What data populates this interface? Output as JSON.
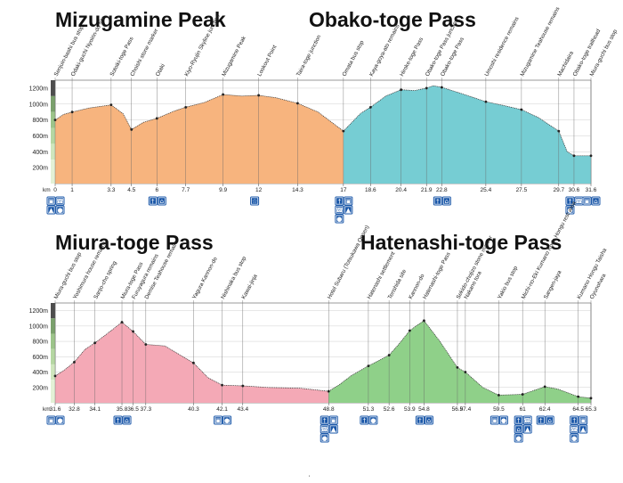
{
  "chart_data": [
    {
      "type": "area",
      "title_left": "Mizugamine Peak",
      "title_right": "Obako-toge Pass",
      "y_unit_label": "km",
      "yticks": [
        "200m",
        "400m",
        "600m",
        "800m",
        "1000m",
        "1200m"
      ],
      "ylim": [
        0,
        1300
      ],
      "xlim": [
        0,
        31.6
      ],
      "series": [
        {
          "color": "#f7b47e",
          "x": [
            0,
            0.5,
            1,
            2,
            3.3,
            4.0,
            4.5,
            5.2,
            6,
            7,
            7.7,
            8.8,
            9.9,
            11,
            12,
            13,
            14.3,
            15.5,
            17
          ],
          "y": [
            800,
            870,
            900,
            950,
            990,
            880,
            680,
            770,
            820,
            910,
            960,
            1020,
            1120,
            1100,
            1110,
            1080,
            1010,
            900,
            660
          ]
        },
        {
          "color": "#76cdd3",
          "x": [
            17,
            18,
            18.6,
            19.5,
            20.4,
            21.2,
            21.9,
            22.3,
            22.8,
            24,
            25.4,
            26.5,
            27.5,
            28.5,
            29.7,
            30.2,
            30.6,
            31.6
          ],
          "y": [
            660,
            880,
            960,
            1100,
            1180,
            1170,
            1200,
            1230,
            1210,
            1130,
            1030,
            980,
            930,
            830,
            660,
            400,
            350,
            350
          ]
        }
      ],
      "xticks": [
        "0",
        "1",
        "3.3",
        "4.5",
        "6",
        "7.7",
        "9.9",
        "12",
        "14.3",
        "17",
        "18.6",
        "20.4",
        "21.9",
        "22.8",
        "25.4",
        "27.5",
        "29.7",
        "30.6",
        "31.6"
      ],
      "markers": [
        {
          "km": 0,
          "label": "Senjuin-bashi bus stop"
        },
        {
          "km": 1,
          "label": "Odaki-guchi Nyoirin-do site"
        },
        {
          "km": 3.3,
          "label": "Sotoiki-toge Pass"
        },
        {
          "km": 4.5,
          "label": "Choishi stone marker"
        },
        {
          "km": 6,
          "label": "Otaki"
        },
        {
          "km": 7.7,
          "label": "Kiyo-Ryujin Skyline junction"
        },
        {
          "km": 9.9,
          "label": "Mizugamine Peak"
        },
        {
          "km": 12,
          "label": "Lookout Point"
        },
        {
          "km": 14.3,
          "label": "Taira-toge junction"
        },
        {
          "km": 17,
          "label": "Omata bus stop"
        },
        {
          "km": 18.6,
          "label": "Kaya-goya-ato remains"
        },
        {
          "km": 20.4,
          "label": "Hiroke-toge Pass"
        },
        {
          "km": 21.9,
          "label": "Obako-toge Pass junction"
        },
        {
          "km": 22.8,
          "label": "Obako-toge Pass"
        },
        {
          "km": 25.4,
          "label": "Umoshi residence remains"
        },
        {
          "km": 27.5,
          "label": "Mizugamine Teahouse remains"
        },
        {
          "km": 29.7,
          "label": "Machidaira"
        },
        {
          "km": 30.6,
          "label": "Obako-toge trailhead"
        },
        {
          "km": 31.6,
          "label": "Miura-guchi bus stop"
        }
      ],
      "icon_columns": [
        {
          "km": 0,
          "icons": [
            "bus-icon",
            "phone-icon",
            "accommodation-icon",
            "water-icon"
          ]
        },
        {
          "km": 6,
          "icons": [
            "toilet-icon",
            "rest-area-icon"
          ]
        },
        {
          "km": 12,
          "icons": [
            "viewpoint-icon"
          ]
        },
        {
          "km": 17,
          "icons": [
            "toilet-icon",
            "bus-icon",
            "phone-icon",
            "accommodation-icon",
            "water-icon"
          ]
        },
        {
          "km": 22.8,
          "icons": [
            "toilet-icon",
            "rest-area-icon"
          ]
        },
        {
          "km": 30.6,
          "icons": [
            "toilet-icon",
            "phone-icon",
            "water-icon"
          ]
        },
        {
          "km": 31.6,
          "icons": [
            "bus-icon",
            "rest-area-icon"
          ]
        }
      ]
    },
    {
      "type": "area",
      "title_left": "Miura-toge Pass",
      "title_right": "Hatenashi-toge Pass",
      "y_unit_label": "km",
      "yticks": [
        "200m",
        "400m",
        "600m",
        "800m",
        "1000m",
        "1200m"
      ],
      "ylim": [
        0,
        1300
      ],
      "xlim": [
        31.6,
        65.3
      ],
      "series": [
        {
          "color": "#f4a9b6",
          "x": [
            31.6,
            32.2,
            32.8,
            33.5,
            34.1,
            35.0,
            35.8,
            36.5,
            37.3,
            38.5,
            40.3,
            41.2,
            42.1,
            43.4,
            45.0,
            47.0,
            48.8
          ],
          "y": [
            350,
            430,
            530,
            700,
            780,
            920,
            1050,
            930,
            760,
            740,
            520,
            330,
            230,
            220,
            200,
            190,
            150
          ]
        },
        {
          "color": "#8fd089",
          "x": [
            48.8,
            49.5,
            50.2,
            51.3,
            52.6,
            53.2,
            53.9,
            54.3,
            54.8,
            55.8,
            56.9,
            57.4,
            58.5,
            59.5,
            61,
            62.4,
            63.2,
            64.5,
            65.3
          ],
          "y": [
            150,
            240,
            350,
            480,
            620,
            760,
            940,
            1000,
            1070,
            800,
            460,
            400,
            200,
            100,
            110,
            210,
            180,
            80,
            60
          ]
        }
      ],
      "xticks": [
        "31.6",
        "32.8",
        "34.1",
        "35.8",
        "36.5",
        "37.3",
        "40.3",
        "42.1",
        "43.4",
        "48.8",
        "51.3",
        "52.6",
        "53.9",
        "54.8",
        "56.9",
        "57.4",
        "59.5",
        "61",
        "62.4",
        "64.5",
        "65.3"
      ],
      "markers": [
        {
          "km": 31.6,
          "label": "Miura-guchi bus stop"
        },
        {
          "km": 32.8,
          "label": "Yoshimura house remains"
        },
        {
          "km": 34.1,
          "label": "Sanjo-cho spring"
        },
        {
          "km": 35.8,
          "label": "Miura-toge Pass"
        },
        {
          "km": 36.5,
          "label": "Furuyagura remains"
        },
        {
          "km": 37.3,
          "label": "Demise Teahouse remains"
        },
        {
          "km": 40.3,
          "label": "Yagura Kannon-do"
        },
        {
          "km": 42.1,
          "label": "Nishinaka bus stop"
        },
        {
          "km": 43.4,
          "label": "Kawai-jinja"
        },
        {
          "km": 48.8,
          "label": "Hotel Subaru (Totsukawa Onsen)"
        },
        {
          "km": 51.3,
          "label": "Hatenashi settlement"
        },
        {
          "km": 52.6,
          "label": "Tenshida site"
        },
        {
          "km": 53.9,
          "label": "Kannon-do"
        },
        {
          "km": 54.8,
          "label": "Hatenashi-toge Pass"
        },
        {
          "km": 56.9,
          "label": "Sekido-chojizo stone marker"
        },
        {
          "km": 57.4,
          "label": "Nakano tora"
        },
        {
          "km": 59.5,
          "label": "Yakio bus stop"
        },
        {
          "km": 61,
          "label": "Michi-no-Eki Kumano Kodo Hongu rest area"
        },
        {
          "km": 62.4,
          "label": "Sangen-jaya"
        },
        {
          "km": 64.5,
          "label": "Kumano Hongu Taisha"
        },
        {
          "km": 65.3,
          "label": "Oyunohara"
        }
      ],
      "icon_columns": [
        {
          "km": 31.6,
          "icons": [
            "bus-icon",
            "water-icon"
          ]
        },
        {
          "km": 35.8,
          "icons": [
            "toilet-icon",
            "rest-area-icon"
          ]
        },
        {
          "km": 42.1,
          "icons": [
            "bus-icon",
            "water-icon"
          ]
        },
        {
          "km": 48.8,
          "icons": [
            "toilet-icon",
            "bus-icon",
            "phone-icon",
            "accommodation-icon",
            "water-icon"
          ]
        },
        {
          "km": 51.3,
          "icons": [
            "toilet-icon",
            "water-icon"
          ]
        },
        {
          "km": 54.8,
          "icons": [
            "toilet-icon",
            "rest-area-icon"
          ]
        },
        {
          "km": 59.5,
          "icons": [
            "bus-icon",
            "water-icon"
          ]
        },
        {
          "km": 61,
          "icons": [
            "toilet-icon",
            "phone-icon",
            "rest-area-icon",
            "accommodation-icon",
            "water-icon"
          ]
        },
        {
          "km": 62.4,
          "icons": [
            "toilet-icon",
            "rest-area-icon"
          ]
        },
        {
          "km": 64.5,
          "icons": [
            "toilet-icon",
            "bus-icon",
            "phone-icon",
            "accommodation-icon",
            "water-icon"
          ]
        }
      ]
    }
  ]
}
